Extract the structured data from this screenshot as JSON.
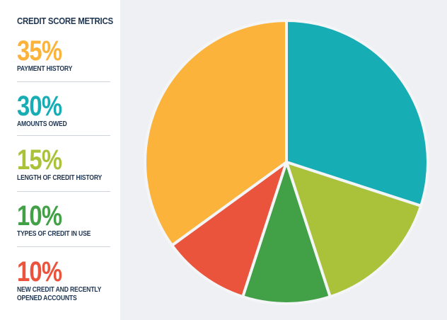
{
  "chart_data": {
    "type": "pie",
    "title": "CREDIT SCORE METRICS",
    "slices": [
      {
        "name": "PAYMENT  HISTORY",
        "value": 35,
        "label": "35%",
        "color": "#fbb33c"
      },
      {
        "name": "AMOUNTS OWED",
        "value": 30,
        "label": "30%",
        "color": "#17adb5"
      },
      {
        "name": "LENGTH OF CREDIT HISTORY",
        "value": 15,
        "label": "15%",
        "color": "#a9c23a"
      },
      {
        "name": "TYPES OF CREDIT IN USE",
        "value": 10,
        "label": "10%",
        "color": "#42a047"
      },
      {
        "name": "NEW CREDIT AND RECENTLY\nOPENED ACCOUNTS",
        "value": 10,
        "label": "10%",
        "color": "#ea543c"
      }
    ],
    "slice_order_clockwise_from_top": [
      1,
      2,
      3,
      4,
      0
    ],
    "legend_placement": "left"
  }
}
